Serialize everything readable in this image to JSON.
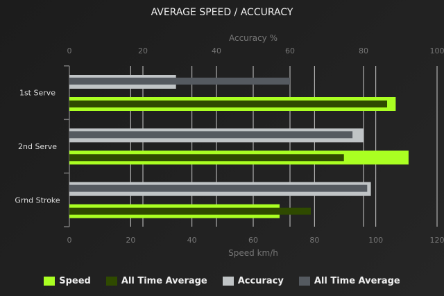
{
  "chart_data": {
    "type": "bar",
    "orientation": "horizontal",
    "title": "AVERAGE SPEED / ACCURACY",
    "categories": [
      "1st Serve",
      "2nd Serve",
      "Grnd Stroke"
    ],
    "x_top": {
      "label": "Accuracy %",
      "range": [
        0,
        100
      ],
      "ticks": [
        0,
        20,
        40,
        60,
        80,
        100
      ]
    },
    "x_bottom": {
      "label": "Speed km/h",
      "range": [
        0,
        120
      ],
      "ticks": [
        0,
        20,
        40,
        60,
        80,
        100,
        120
      ]
    },
    "series": [
      {
        "name": "Speed",
        "axis": "bottom",
        "color": "#aaff22",
        "values": [
          106.5,
          110.7,
          68.6
        ]
      },
      {
        "name": "All Time Average",
        "axis": "bottom",
        "color": "#2f4a00",
        "values": [
          103.7,
          89.6,
          78.8
        ]
      },
      {
        "name": "Accuracy",
        "axis": "top",
        "color": "#c0c4c6",
        "values": [
          29,
          80,
          82
        ]
      },
      {
        "name": "All Time Average",
        "axis": "top",
        "color": "#555a60",
        "values": [
          60,
          77,
          81
        ]
      }
    ],
    "grid": true,
    "legend_position": "bottom"
  }
}
